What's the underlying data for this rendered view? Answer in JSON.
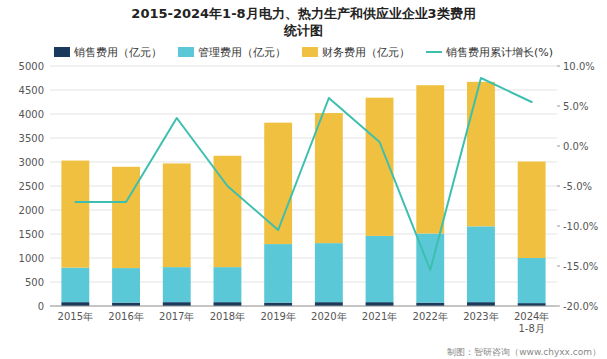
{
  "chart_data": {
    "type": "bar",
    "title": "2015-2024年1-8月电力、热力生产和供应业企业3类费用",
    "subtitle": "统计图",
    "categories": [
      "2015年",
      "2016年",
      "2017年",
      "2018年",
      "2019年",
      "2020年",
      "2021年",
      "2022年",
      "2023年",
      "2024年\n1-8月"
    ],
    "series": [
      {
        "name": "销售费用（亿元）",
        "type": "bar",
        "color": "#1a3a5c",
        "values": [
          80,
          70,
          80,
          80,
          70,
          80,
          80,
          70,
          80,
          60
        ]
      },
      {
        "name": "管理费用（亿元）",
        "type": "bar",
        "color": "#5bc8d8",
        "values": [
          720,
          720,
          730,
          730,
          1220,
          1230,
          1380,
          1440,
          1580,
          940
        ]
      },
      {
        "name": "财务费用（亿元）",
        "type": "bar",
        "color": "#f0c040",
        "values": [
          2230,
          2110,
          2160,
          2320,
          2530,
          2710,
          2880,
          3090,
          3010,
          2010
        ]
      },
      {
        "name": "销售费用累计增长(%)",
        "type": "line",
        "axis": "y2",
        "color": "#3dbfaf",
        "values": [
          -7.0,
          -7.0,
          3.5,
          -5.0,
          -10.5,
          6.0,
          0.5,
          -15.5,
          8.5,
          5.5
        ]
      }
    ],
    "stacked": true,
    "ylim": [
      0,
      5000
    ],
    "yticks": [
      0,
      500,
      1000,
      1500,
      2000,
      2500,
      3000,
      3500,
      4000,
      4500,
      5000
    ],
    "y2lim": [
      -20.0,
      10.0
    ],
    "y2ticks": [
      {
        "value": -20.0,
        "label": "-20.0%"
      },
      {
        "value": -15.0,
        "label": "-15.0%"
      },
      {
        "value": -10.0,
        "label": "-10.0%"
      },
      {
        "value": -5.0,
        "label": "-5.0%"
      },
      {
        "value": 0.0,
        "label": "0.0%"
      },
      {
        "value": 5.0,
        "label": "5.0%"
      },
      {
        "value": 10.0,
        "label": "10.0%"
      }
    ],
    "grid": true,
    "legend": "top",
    "annotations": [
      "制图：智研咨询（www.chyxx.com）"
    ]
  }
}
